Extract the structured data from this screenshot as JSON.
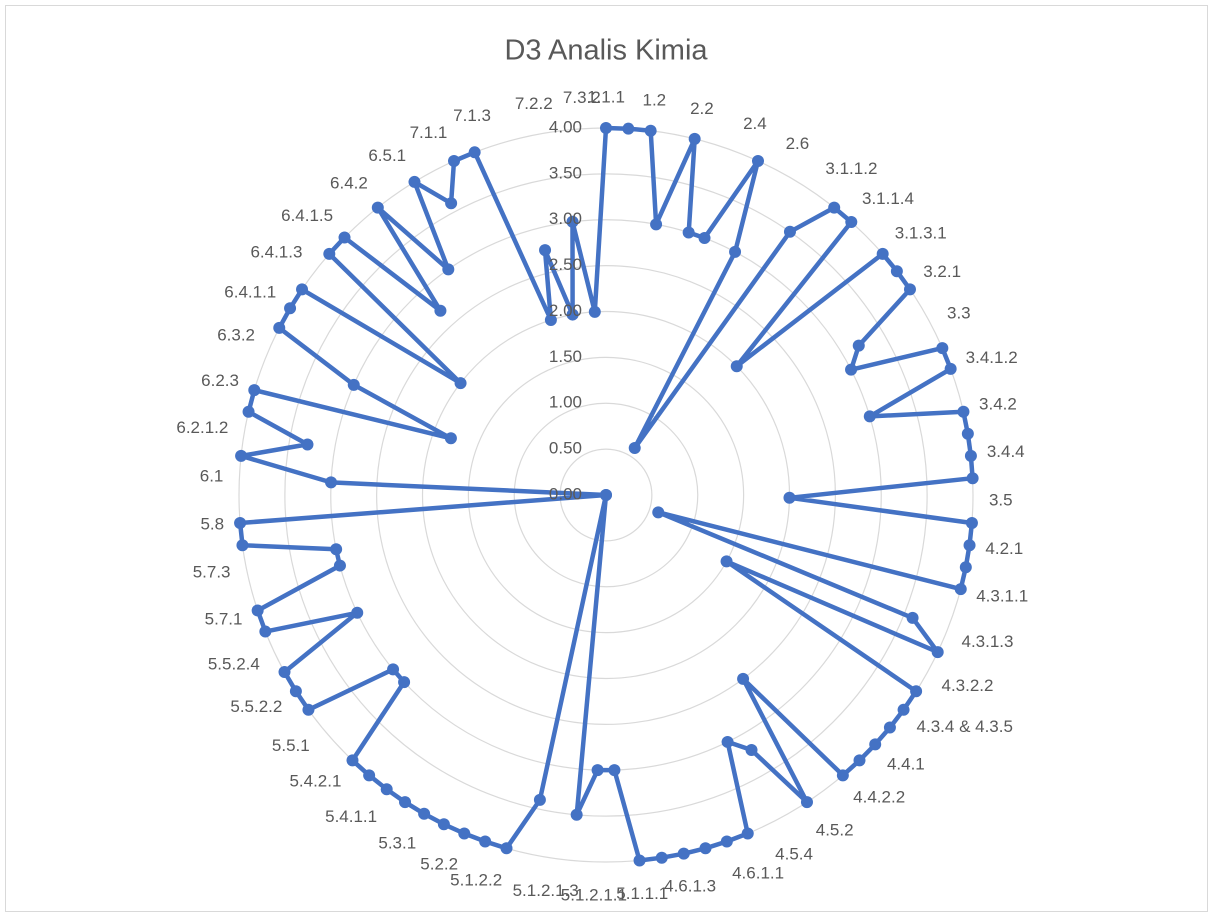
{
  "chart_data": {
    "type": "radar",
    "title": "D3 Analis Kimia",
    "categories": [
      "1.1.1",
      null,
      "1.2",
      null,
      "2.2",
      null,
      "2.4",
      null,
      "2.6",
      null,
      "3.1.1.2",
      null,
      "3.1.1.4",
      null,
      "3.1.3.1",
      null,
      "3.2.1",
      null,
      "3.3",
      null,
      "3.4.1.2",
      null,
      "3.4.2",
      null,
      "3.4.4",
      null,
      "3.5",
      null,
      "4.2.1",
      null,
      "4.3.1.1",
      null,
      "4.3.1.3",
      null,
      "4.3.2.2",
      null,
      "4.3.4 & 4.3.5",
      null,
      "4.4.1",
      null,
      "4.4.2.2",
      null,
      "4.5.2",
      null,
      "4.5.4",
      null,
      "4.6.1.1",
      null,
      "4.6.1.3",
      null,
      "5.1.1.1",
      null,
      "5.1.2.1.1",
      null,
      "5.1.2.1.3",
      null,
      "5.1.2.2",
      null,
      "5.2.2",
      null,
      "5.3.1",
      null,
      "5.4.1.1",
      null,
      "5.4.2.1",
      null,
      "5.5.1",
      null,
      "5.5.2.2",
      null,
      "5.5.2.4",
      null,
      "5.7.1",
      null,
      "5.7.3",
      null,
      "5.8",
      null,
      "6.1",
      null,
      "6.2.1.2",
      null,
      "6.2.3",
      null,
      "6.3.2",
      null,
      "6.4.1.1",
      null,
      "6.4.1.3",
      null,
      "6.4.1.5",
      null,
      "6.4.2",
      null,
      "6.5.1",
      null,
      "7.1.1",
      null,
      "7.1.3",
      null,
      "7.2.2",
      null,
      "7.3.2"
    ],
    "values": [
      4,
      4,
      4,
      3,
      4,
      3,
      3,
      4,
      3,
      0.6,
      3.5,
      4,
      4,
      2,
      4,
      4,
      4,
      3.2,
      3,
      4,
      4,
      3,
      4,
      4,
      4,
      4,
      2,
      4,
      4,
      4,
      4,
      0.6,
      3.6,
      4,
      1.5,
      4,
      4,
      4,
      4,
      4,
      4,
      2.5,
      4,
      3.2,
      3,
      4,
      4,
      4,
      4,
      4,
      4,
      3,
      3,
      3.5,
      0,
      3.4,
      4,
      4,
      4,
      4,
      4,
      4,
      4,
      4,
      4,
      3,
      3,
      4,
      4,
      4,
      3,
      4,
      4,
      3,
      3,
      4,
      4,
      0,
      3,
      4,
      3.3,
      4,
      4,
      1.8,
      3,
      4,
      4,
      4,
      2,
      4,
      4,
      2.7,
      4,
      3,
      4,
      3.6,
      4,
      4,
      2,
      2.75,
      2,
      3,
      2
    ],
    "color": "#4472c4",
    "ylim": [
      0,
      4
    ],
    "yticks": [
      {
        "value": 0,
        "label": "0.00"
      },
      {
        "value": 0.5,
        "label": "0.50"
      },
      {
        "value": 1,
        "label": "1.00"
      },
      {
        "value": 1.5,
        "label": "1.50"
      },
      {
        "value": 2,
        "label": "2.00"
      },
      {
        "value": 2.5,
        "label": "2.50"
      },
      {
        "value": 3,
        "label": "3.00"
      },
      {
        "value": 3.5,
        "label": "3.50"
      },
      {
        "value": 4,
        "label": "4.00"
      }
    ],
    "grid": true
  }
}
